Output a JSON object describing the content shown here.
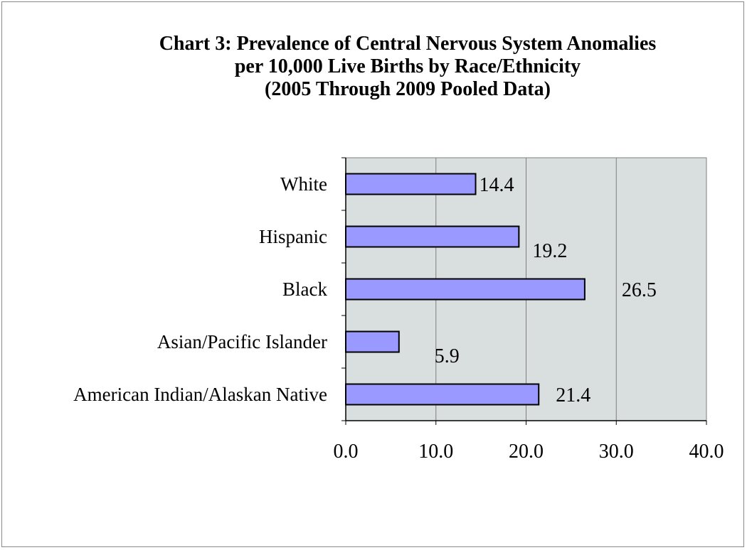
{
  "chart_data": {
    "type": "bar",
    "orientation": "horizontal",
    "title_lines": [
      "Chart 3: Prevalence of Central Nervous System Anomalies",
      "per 10,000 Live Births by Race/Ethnicity",
      "(2005 Through 2009 Pooled Data)"
    ],
    "categories": [
      "White",
      "Hispanic",
      "Black",
      "Asian/Pacific Islander",
      "American Indian/Alaskan Native"
    ],
    "values": [
      14.4,
      19.2,
      26.5,
      5.9,
      21.4
    ],
    "value_labels": [
      "14.4",
      "19.2",
      "26.5",
      "5.9",
      "21.4"
    ],
    "xlim": [
      0,
      40
    ],
    "x_ticks": [
      "0.0",
      "10.0",
      "20.0",
      "30.0",
      "40.0"
    ],
    "x_tick_values": [
      0,
      10,
      20,
      30,
      40
    ],
    "xlabel": "",
    "ylabel": "",
    "grid": "vertical",
    "legend": "none",
    "colors": {
      "bar_fill": "#9999ff",
      "bar_stroke": "#000000",
      "plot_background": "#d9dfdf",
      "gridline": "#7f7f7f"
    }
  }
}
